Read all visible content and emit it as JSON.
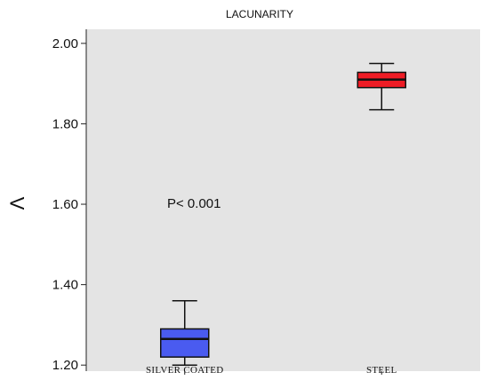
{
  "chart_data": {
    "type": "boxplot",
    "title": "LACUNARITY",
    "ylabel": "Λ",
    "xlabel": "",
    "ylim": [
      1.185,
      2.035
    ],
    "yticks": [
      2.0,
      1.8,
      1.6,
      1.4,
      1.2
    ],
    "ytick_labels": [
      "2.00",
      "1.80",
      "1.60",
      "1.40",
      "1.20"
    ],
    "categories": [
      "SILVER COATED",
      "STEEL"
    ],
    "series": [
      {
        "category": "SILVER COATED",
        "whisker_low": 1.2,
        "q1": 1.22,
        "median": 1.265,
        "q3": 1.29,
        "whisker_high": 1.36,
        "color": "#4a5bf0"
      },
      {
        "category": "STEEL",
        "whisker_low": 1.835,
        "q1": 1.89,
        "median": 1.91,
        "q3": 1.928,
        "whisker_high": 1.95,
        "color": "#ee1c25"
      }
    ],
    "annotations": [
      {
        "text": "P< 0.001"
      }
    ],
    "plot_background": "#e4e4e4",
    "grid": false,
    "legend": "none"
  }
}
